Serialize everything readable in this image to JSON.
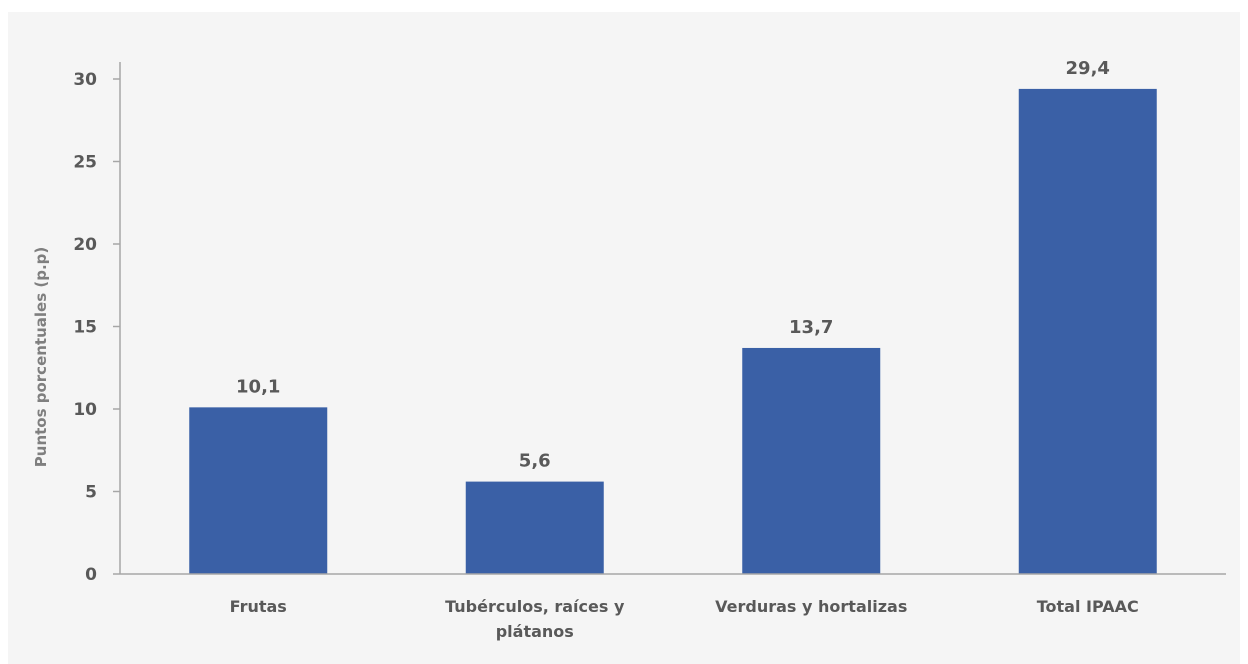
{
  "chart_data": {
    "type": "bar",
    "categories": [
      "Frutas",
      "Tubérculos, raíces y plátanos",
      "Verduras y hortalizas",
      "Total  IPAAC"
    ],
    "category_lines": [
      [
        "Frutas"
      ],
      [
        "Tubérculos, raíces y",
        "plátanos"
      ],
      [
        "Verduras y hortalizas"
      ],
      [
        "Total  IPAAC"
      ]
    ],
    "values": [
      10.1,
      5.6,
      13.7,
      29.4
    ],
    "data_labels": [
      "10,1",
      "5,6",
      "13,7",
      "29,4"
    ],
    "title": "",
    "xlabel": "",
    "ylabel": "Puntos porcentuales (p.p)",
    "ylim": [
      0,
      30
    ],
    "yticks": [
      0,
      5,
      10,
      15,
      20,
      25,
      30
    ],
    "grid": false,
    "legend": "none",
    "bar_color": "#3a60a6",
    "axis_color": "#a6a6a6"
  }
}
